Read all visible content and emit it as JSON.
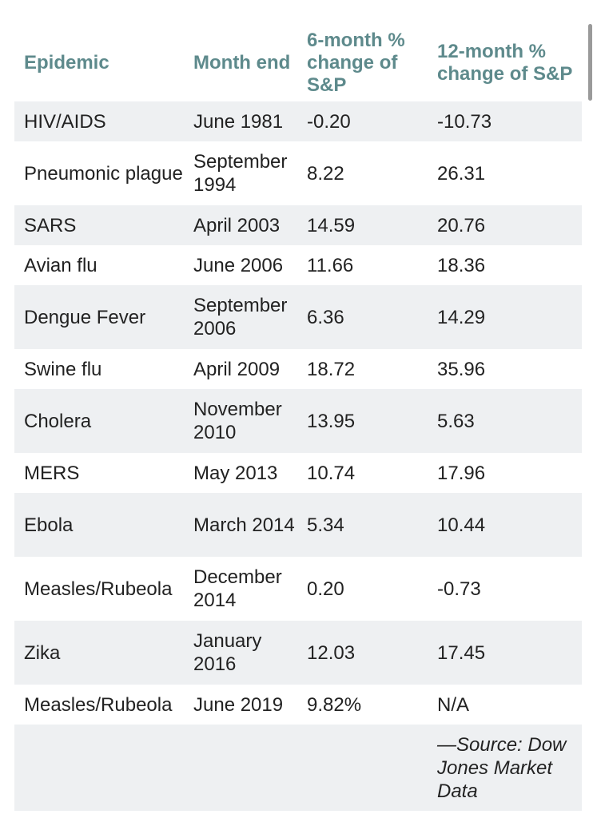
{
  "table": {
    "headers": {
      "epidemic": "Epidemic",
      "month_end": "Month end",
      "six_month": "6-month % change of S&P",
      "twelve_month": "12-month % change of S&P"
    },
    "rows": [
      {
        "epidemic": "HIV/AIDS",
        "month_end": "June 1981",
        "six_month": "-0.20",
        "twelve_month": "-10.73"
      },
      {
        "epidemic": "Pneumonic plague",
        "month_end": "September 1994",
        "six_month": "8.22",
        "twelve_month": "26.31"
      },
      {
        "epidemic": "SARS",
        "month_end": "April 2003",
        "six_month": "14.59",
        "twelve_month": "20.76"
      },
      {
        "epidemic": "Avian flu",
        "month_end": "June 2006",
        "six_month": "11.66",
        "twelve_month": "18.36"
      },
      {
        "epidemic": "Dengue Fever",
        "month_end": "September 2006",
        "six_month": "6.36",
        "twelve_month": "14.29"
      },
      {
        "epidemic": "Swine flu",
        "month_end": "April 2009",
        "six_month": "18.72",
        "twelve_month": "35.96"
      },
      {
        "epidemic": "Cholera",
        "month_end": "November 2010",
        "six_month": "13.95",
        "twelve_month": "5.63"
      },
      {
        "epidemic": "MERS",
        "month_end": "May 2013",
        "six_month": "10.74",
        "twelve_month": "17.96"
      },
      {
        "epidemic": "Ebola",
        "month_end": "March 2014",
        "six_month": "5.34",
        "twelve_month": "10.44"
      },
      {
        "epidemic": "Measles/Rubeola",
        "month_end": "December 2014",
        "six_month": "0.20",
        "twelve_month": "-0.73"
      },
      {
        "epidemic": "Zika",
        "month_end": "January 2016",
        "six_month": "12.03",
        "twelve_month": "17.45"
      },
      {
        "epidemic": "Measles/Rubeola",
        "month_end": "June 2019",
        "six_month": "9.82%",
        "twelve_month": "N/A"
      }
    ],
    "source": "—Source: Dow Jones Market Data"
  },
  "colors": {
    "header_text": "#5e8a8c",
    "row_shade": "#eef0f2",
    "body_text": "#222222"
  }
}
